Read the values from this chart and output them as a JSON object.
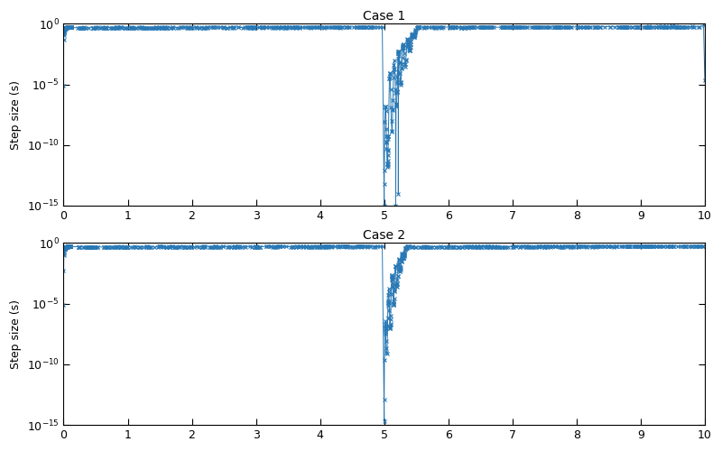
{
  "title1": "Case 1",
  "title2": "Case 2",
  "ylabel": "Step size (s)",
  "xlim": [
    0,
    10
  ],
  "ylim_log": [
    -15,
    0
  ],
  "color": "#2878b5",
  "linewidth": 0.7,
  "markersize": 3.5,
  "yticks": [
    -15,
    -10,
    -5,
    0
  ],
  "xticks": [
    0,
    1,
    2,
    3,
    4,
    5,
    6,
    7,
    8,
    9,
    10
  ]
}
